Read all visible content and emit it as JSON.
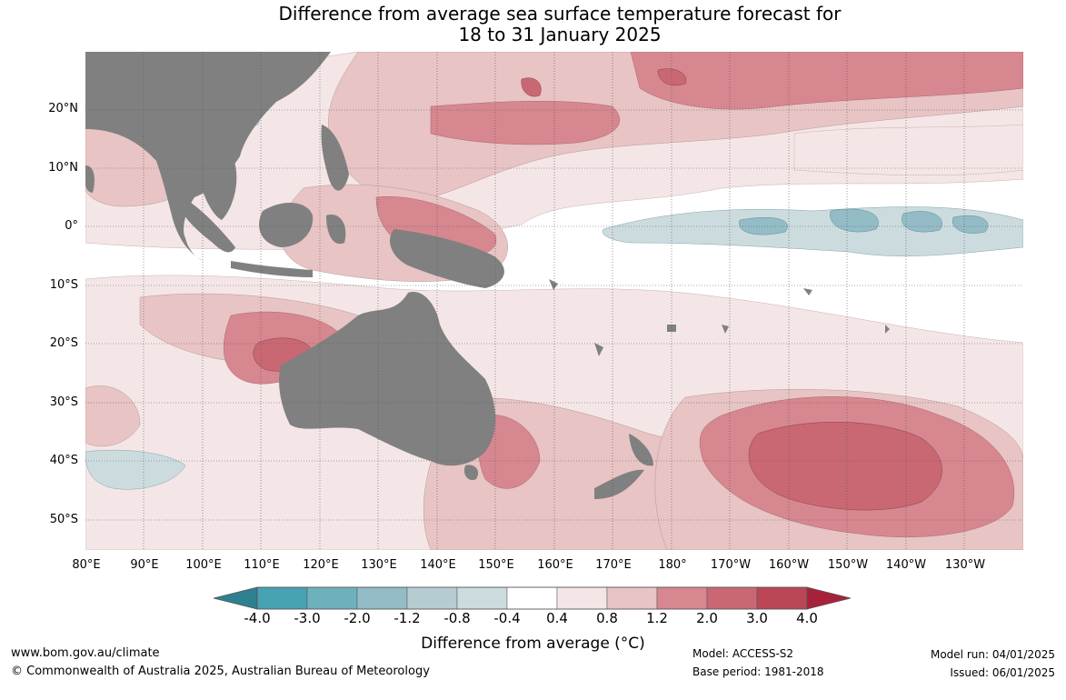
{
  "title": {
    "line1": "Difference from average sea surface temperature forecast for",
    "line2": "18 to 31 January 2025"
  },
  "map": {
    "lat_labels": [
      "20°N",
      "10°N",
      "0°",
      "10°S",
      "20°S",
      "30°S",
      "40°S",
      "50°S"
    ],
    "lon_labels": [
      "80°E",
      "90°E",
      "100°E",
      "110°E",
      "120°E",
      "130°E",
      "140°E",
      "150°E",
      "160°E",
      "170°E",
      "180°",
      "170°W",
      "160°W",
      "150°W",
      "140°W",
      "130°W"
    ],
    "colors": {
      "land": "#808080",
      "grid": "#555555"
    }
  },
  "colorbar": {
    "title": "Difference from average (°C)",
    "ticks": [
      "-4.0",
      "-3.0",
      "-2.0",
      "-1.2",
      "-0.8",
      "-0.4",
      "0.4",
      "0.8",
      "1.2",
      "2.0",
      "3.0",
      "4.0"
    ],
    "colors": [
      "#2e7f8f",
      "#47a2b3",
      "#6fb0bd",
      "#93bcc6",
      "#b5cdd2",
      "#ccdbde",
      "#ffffff",
      "#f4e6e6",
      "#e8c4c4",
      "#d6878f",
      "#c96873",
      "#bb4656",
      "#a8213a"
    ]
  },
  "footer": {
    "url": "www.bom.gov.au/climate",
    "copyright": "© Commonwealth of Australia 2025, Australian Bureau of Meteorology",
    "model": "Model: ACCESS-S2",
    "base_period": "Base period: 1981-2018",
    "model_run": "Model run: 04/01/2025",
    "issued": "Issued: 06/01/2025"
  }
}
